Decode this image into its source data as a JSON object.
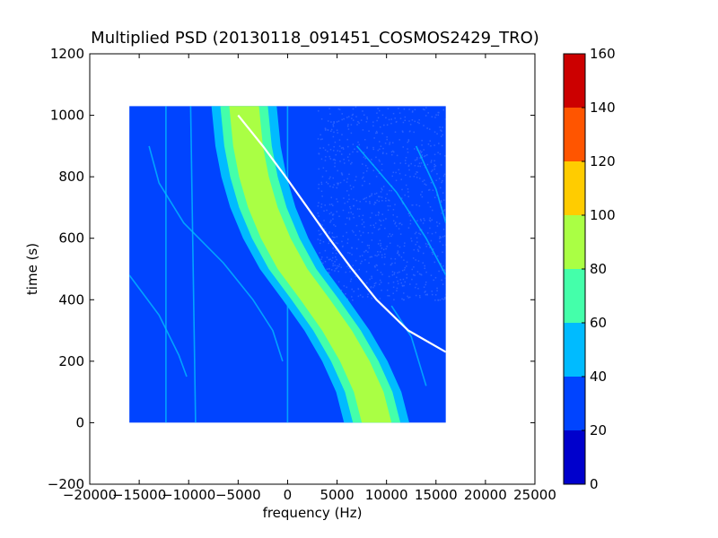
{
  "chart_data": {
    "type": "heatmap",
    "title": "Multiplied PSD (20130118_091451_COSMOS2429_TRO)",
    "xlabel": "frequency (Hz)",
    "ylabel": "time (s)",
    "xlim": [
      -20000,
      25000
    ],
    "ylim": [
      -200,
      1200
    ],
    "xticks": [
      -20000,
      -15000,
      -10000,
      -5000,
      0,
      5000,
      10000,
      15000,
      20000,
      25000
    ],
    "yticks": [
      -200,
      0,
      200,
      400,
      600,
      800,
      1000,
      1200
    ],
    "data_extent": {
      "x": [
        -16000,
        16000
      ],
      "y": [
        0,
        1030
      ]
    },
    "background_value": 25,
    "colorbar": {
      "range": [
        0,
        160
      ],
      "ticks": [
        0,
        20,
        40,
        60,
        80,
        100,
        120,
        140,
        160
      ],
      "bins": [
        {
          "from": 0,
          "to": 20,
          "color": "#0000cc"
        },
        {
          "from": 20,
          "to": 40,
          "color": "#0044ff"
        },
        {
          "from": 40,
          "to": 60,
          "color": "#00bbff"
        },
        {
          "from": 60,
          "to": 80,
          "color": "#44ffaa"
        },
        {
          "from": 80,
          "to": 100,
          "color": "#aaff44"
        },
        {
          "from": 100,
          "to": 120,
          "color": "#ffcc00"
        },
        {
          "from": 120,
          "to": 140,
          "color": "#ff5500"
        },
        {
          "from": 140,
          "to": 160,
          "color": "#cc0000"
        }
      ]
    },
    "main_band": {
      "center": [
        {
          "t": 0,
          "f": 9000
        },
        {
          "t": 100,
          "f": 8200
        },
        {
          "t": 200,
          "f": 6800
        },
        {
          "t": 300,
          "f": 5000
        },
        {
          "t": 400,
          "f": 2800
        },
        {
          "t": 500,
          "f": 500
        },
        {
          "t": 600,
          "f": -1200
        },
        {
          "t": 700,
          "f": -2500
        },
        {
          "t": 800,
          "f": -3400
        },
        {
          "t": 900,
          "f": -4000
        },
        {
          "t": 1030,
          "f": -4400
        }
      ],
      "layers": [
        {
          "value": 50,
          "half_width": 3300
        },
        {
          "value": 70,
          "half_width": 2400
        },
        {
          "value": 90,
          "half_width": 1500
        }
      ]
    },
    "trace_line": {
      "value": "white",
      "points": [
        {
          "t": 1000,
          "f": -5000
        },
        {
          "t": 900,
          "f": -2500
        },
        {
          "t": 800,
          "f": -200
        },
        {
          "t": 700,
          "f": 2000
        },
        {
          "t": 600,
          "f": 4200
        },
        {
          "t": 500,
          "f": 6500
        },
        {
          "t": 400,
          "f": 9000
        },
        {
          "t": 300,
          "f": 12200
        },
        {
          "t": 230,
          "f": 16000
        }
      ]
    },
    "faint_tracks": [
      {
        "value": 45,
        "points": [
          {
            "t": 480,
            "f": -16000
          },
          {
            "t": 350,
            "f": -13000
          },
          {
            "t": 220,
            "f": -11000
          },
          {
            "t": 150,
            "f": -10200
          }
        ]
      },
      {
        "value": 45,
        "points": [
          {
            "t": 900,
            "f": -14000
          },
          {
            "t": 780,
            "f": -13000
          },
          {
            "t": 650,
            "f": -10500
          },
          {
            "t": 520,
            "f": -6500
          },
          {
            "t": 400,
            "f": -3500
          },
          {
            "t": 300,
            "f": -1500
          },
          {
            "t": 200,
            "f": -500
          }
        ]
      },
      {
        "value": 45,
        "points": [
          {
            "t": 900,
            "f": 7000
          },
          {
            "t": 750,
            "f": 11000
          },
          {
            "t": 600,
            "f": 14000
          },
          {
            "t": 480,
            "f": 16000
          }
        ]
      },
      {
        "value": 45,
        "points": [
          {
            "t": 900,
            "f": 13000
          },
          {
            "t": 760,
            "f": 15000
          },
          {
            "t": 650,
            "f": 16000
          }
        ]
      },
      {
        "value": 45,
        "points": [
          {
            "t": 380,
            "f": 10500
          },
          {
            "t": 280,
            "f": 12500
          },
          {
            "t": 120,
            "f": 14000
          }
        ]
      },
      {
        "value": 40,
        "points": [
          {
            "t": 1030,
            "f": -12300
          },
          {
            "t": 0,
            "f": -12300
          }
        ]
      },
      {
        "value": 40,
        "points": [
          {
            "t": 1030,
            "f": -9800
          },
          {
            "t": 0,
            "f": -9300
          }
        ]
      },
      {
        "value": 40,
        "points": [
          {
            "t": 1030,
            "f": 0
          },
          {
            "t": 0,
            "f": 0
          }
        ]
      }
    ],
    "speckle_zone": {
      "f": [
        3000,
        16000
      ],
      "t": [
        400,
        1030
      ],
      "value": 35
    }
  }
}
